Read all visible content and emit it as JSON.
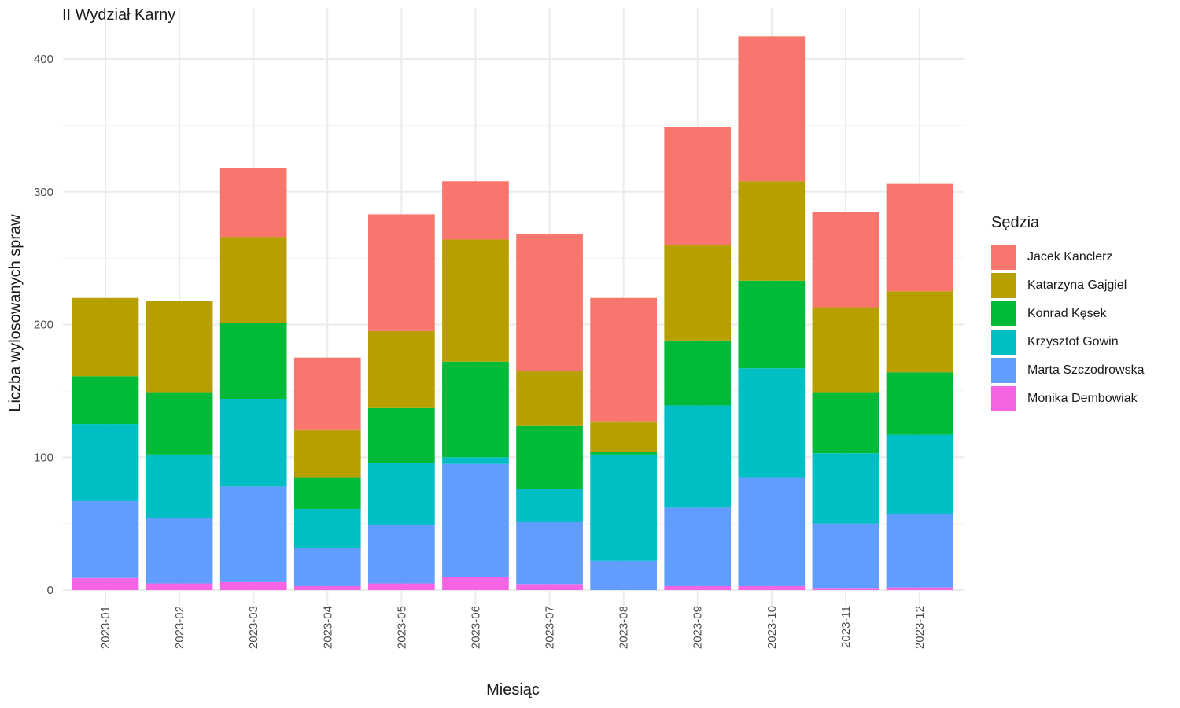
{
  "chart_data": {
    "type": "bar",
    "stacked": true,
    "title": "II Wydział Karny",
    "xlabel": "Miesiąc",
    "ylabel": "Liczba wylosowanych spraw",
    "ylim": [
      0,
      430
    ],
    "yticks": [
      0,
      100,
      200,
      300,
      400
    ],
    "grid": true,
    "legend_position": "right",
    "legend_title": "Sędzia",
    "categories": [
      "2023-01",
      "2023-02",
      "2023-03",
      "2023-04",
      "2023-05",
      "2023-06",
      "2023-07",
      "2023-08",
      "2023-09",
      "2023-10",
      "2023-11",
      "2023-12"
    ],
    "series": [
      {
        "name": "Jacek Kanclerz",
        "color": "#F8766D",
        "values": [
          0,
          0,
          52,
          54,
          88,
          44,
          103,
          93,
          89,
          109,
          72,
          81
        ]
      },
      {
        "name": "Katarzyna Gajgiel",
        "color": "#B79F00",
        "values": [
          59,
          69,
          65,
          36,
          58,
          92,
          41,
          23,
          72,
          75,
          64,
          61
        ]
      },
      {
        "name": "Konrad Kęsek",
        "color": "#00BA38",
        "values": [
          36,
          47,
          57,
          24,
          41,
          72,
          48,
          2,
          49,
          66,
          46,
          47
        ]
      },
      {
        "name": "Krzysztof Gowin",
        "color": "#00BFC4",
        "values": [
          58,
          48,
          66,
          29,
          47,
          5,
          25,
          80,
          77,
          82,
          53,
          60
        ]
      },
      {
        "name": "Marta Szczodrowska",
        "color": "#619CFF",
        "values": [
          58,
          49,
          72,
          29,
          44,
          85,
          47,
          22,
          59,
          82,
          49,
          55
        ]
      },
      {
        "name": "Monika Dembowiak",
        "color": "#F564E3",
        "values": [
          9,
          5,
          6,
          3,
          5,
          10,
          4,
          0,
          3,
          3,
          1,
          2
        ]
      }
    ]
  }
}
